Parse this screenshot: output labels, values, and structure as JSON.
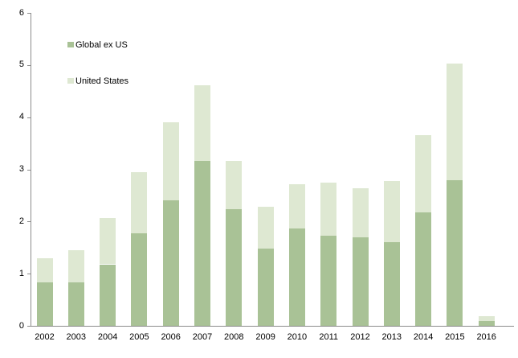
{
  "chart_data": {
    "type": "bar",
    "stacked": true,
    "title": "",
    "xlabel": "",
    "ylabel": "",
    "categories": [
      "2002",
      "2003",
      "2004",
      "2005",
      "2006",
      "2007",
      "2008",
      "2009",
      "2010",
      "2011",
      "2012",
      "2013",
      "2014",
      "2015",
      "2016"
    ],
    "series": [
      {
        "name": "Global ex US",
        "color": "#a9c296",
        "values": [
          0.83,
          0.84,
          1.18,
          1.77,
          2.41,
          3.16,
          2.24,
          1.48,
          1.87,
          1.73,
          1.7,
          1.61,
          2.18,
          2.79,
          0.09
        ]
      },
      {
        "name": "United States",
        "color": "#dee8d2",
        "values": [
          0.47,
          0.61,
          0.88,
          1.17,
          1.5,
          1.45,
          0.93,
          0.81,
          0.84,
          1.02,
          0.94,
          1.17,
          1.48,
          2.24,
          0.09
        ]
      }
    ],
    "stack_totals": [
      1.3,
      1.45,
      2.06,
      2.94,
      3.91,
      4.61,
      3.17,
      2.29,
      2.71,
      2.75,
      2.64,
      2.78,
      3.66,
      5.03,
      0.18
    ],
    "ylim": [
      0,
      6
    ],
    "yticks": [
      "0",
      "1",
      "2",
      "3",
      "4",
      "5",
      "6"
    ],
    "grid": false,
    "legend_position": "inside-top-left"
  },
  "colors": {
    "axis": "#8c8c8c",
    "text": "#000000",
    "background": "#ffffff"
  }
}
